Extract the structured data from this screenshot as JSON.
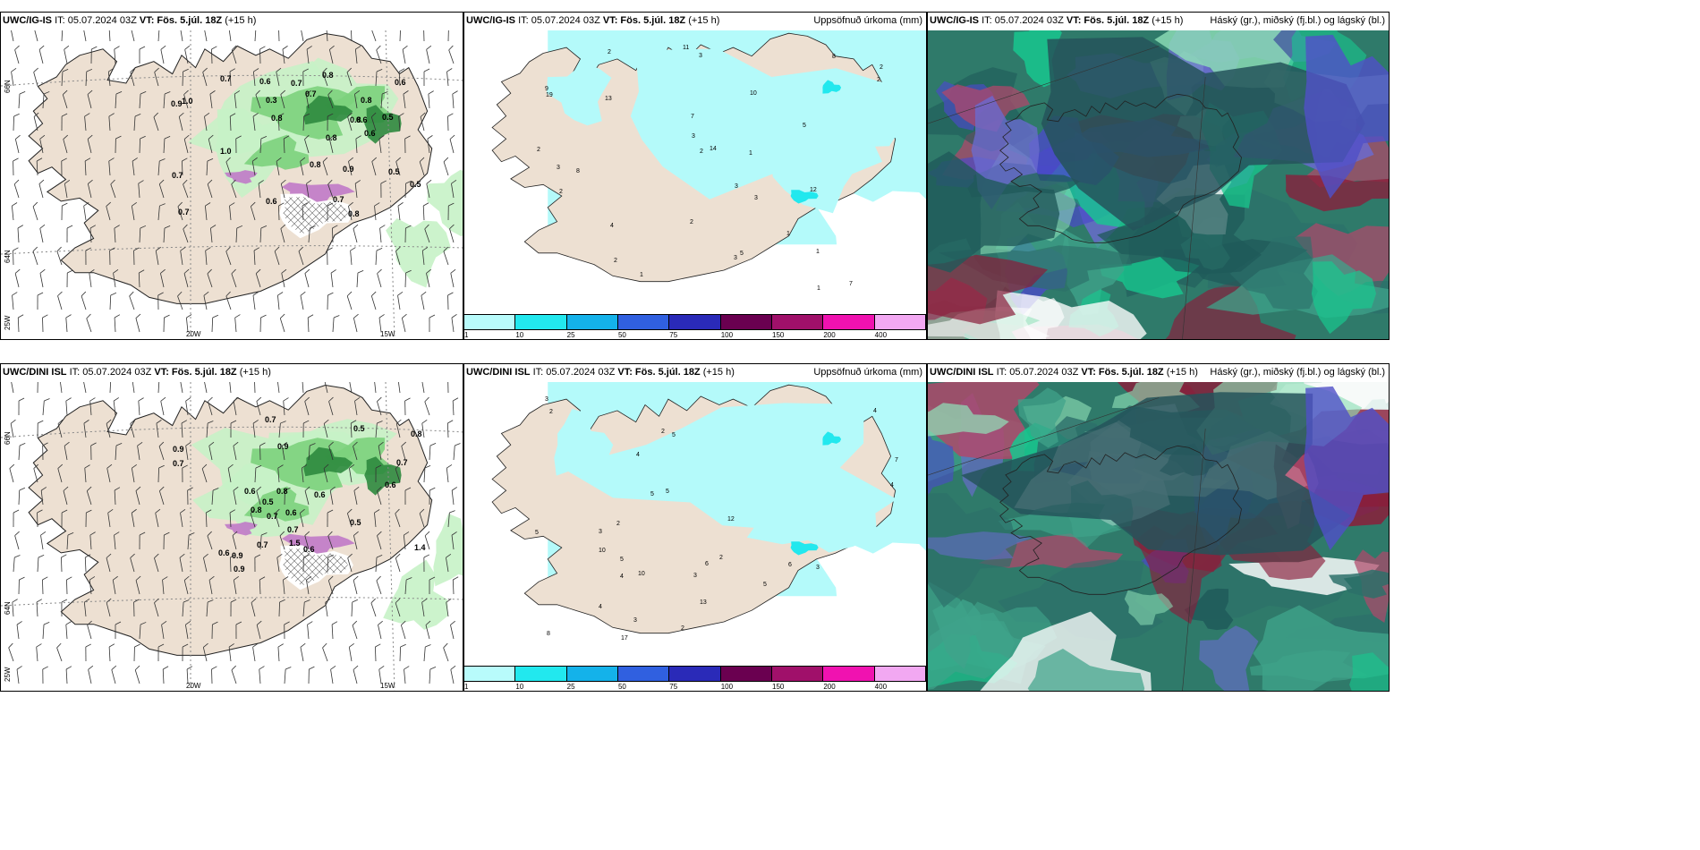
{
  "panels": [
    {
      "model": "UWC/IG-IS",
      "it": "IT: 05.07.2024 03Z",
      "vt": "VT: Fös. 5.júl. 18Z",
      "lead": "(+15 h)",
      "right": ""
    },
    {
      "model": "UWC/IG-IS",
      "it": "IT: 05.07.2024 03Z",
      "vt": "VT: Fös. 5.júl. 18Z",
      "lead": "(+15 h)",
      "right": "Uppsöfnuð úrkoma (mm)"
    },
    {
      "model": "UWC/IG-IS",
      "it": "IT: 05.07.2024 03Z",
      "vt": "VT: Fös. 5.júl. 18Z",
      "lead": "(+15 h)",
      "right": "Háský (gr.), miðský (fj.bl.) og lágský (bl.)"
    },
    {
      "model": "UWC/DINI ISL",
      "it": "IT: 05.07.2024 03Z",
      "vt": "VT: Fös. 5.júl. 18Z",
      "lead": "(+15 h)",
      "right": ""
    },
    {
      "model": "UWC/DINI ISL",
      "it": "IT: 05.07.2024 03Z",
      "vt": "VT: Fös. 5.júl. 18Z",
      "lead": "(+15 h)",
      "right": "Uppsöfnuð úrkoma (mm)"
    },
    {
      "model": "UWC/DINI ISL",
      "it": "IT: 05.07.2024 03Z",
      "vt": "VT: Fös. 5.júl. 18Z",
      "lead": "(+15 h)",
      "right": "Háský (gr.), miðský (fj.bl.) og lágský (bl.)"
    }
  ],
  "axis": {
    "lat_top": "66N",
    "lat_bottom": "64N",
    "lon_left": "25W",
    "lon_mid": "20W",
    "lon_right": "15W"
  },
  "colorbar": {
    "ticks": [
      "1",
      "10",
      "25",
      "50",
      "75",
      "100",
      "150",
      "200",
      "400"
    ],
    "colors": [
      "#b8fbfb",
      "#22e8ee",
      "#14b2ea",
      "#3060e0",
      "#2a2ab8",
      "#6a0050",
      "#a0106a",
      "#f012b0",
      "#f2a8f2"
    ]
  },
  "colors": {
    "land": "#ede0d2",
    "precip_light": "#c6f2c6",
    "precip_mid": "#7cd27c",
    "precip_dark": "#2e8a3e",
    "snow_pink": "#c07ac8",
    "accum_fill": "#b4fafa",
    "sea": "#ffffff"
  },
  "vis_values_top": [
    "0.7",
    "1.0",
    "0.8",
    "0.9",
    "0.8",
    "0.6",
    "0.8",
    "0.7",
    "0.8",
    "0.8",
    "0.7",
    "0.5",
    "0.6",
    "0.7",
    "0.6",
    "0.8",
    "0.6",
    "0.7",
    "0.5",
    "0.6",
    "0.7",
    "0.8",
    "0.3",
    "0.5",
    "0.9",
    "1.0"
  ],
  "vis_values_bottom": [
    "0.8",
    "0.6",
    "0.6",
    "1.4",
    "0.6",
    "0.6",
    "0.7",
    "0.8",
    "0.5",
    "0.9",
    "0.8",
    "0.9",
    "0.6",
    "0.7",
    "0.7",
    "0.9",
    "0.5",
    "0.7",
    "0.6",
    "0.5",
    "1.5",
    "0.7",
    "0.7",
    "0.9"
  ],
  "accum_values_top": [
    "2",
    "3",
    "5",
    "2",
    "9",
    "7",
    "8",
    "10",
    "7",
    "8",
    "14",
    "12",
    "11",
    "19",
    "13",
    "4",
    "5",
    "3",
    "3",
    "2",
    "1",
    "1",
    "2",
    "3",
    "2",
    "2",
    "3",
    "2",
    "1",
    "3",
    "2",
    "1",
    "1"
  ],
  "accum_values_bottom": [
    "2",
    "3",
    "5",
    "4",
    "7",
    "5",
    "5",
    "10",
    "8",
    "6",
    "4",
    "12",
    "17",
    "10",
    "6",
    "5",
    "3",
    "4",
    "4",
    "5",
    "4",
    "13",
    "3",
    "2",
    "3",
    "2",
    "5",
    "3",
    "2",
    "2"
  ]
}
